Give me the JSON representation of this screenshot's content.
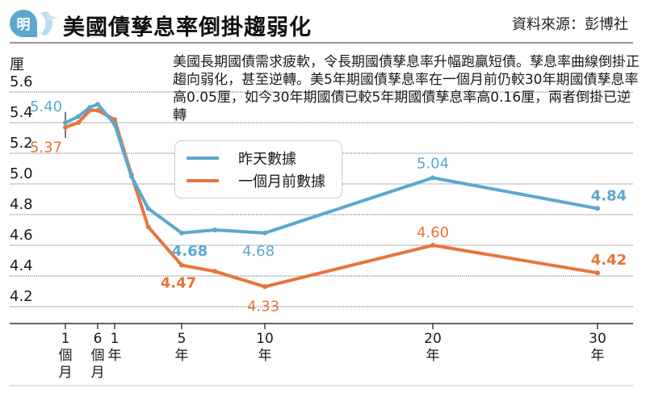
{
  "header": {
    "logo_glyph": "明",
    "logo_icon": "ming-pao-logo-icon",
    "title": "美國債孳息率倒掛趨弱化",
    "source": "資料來源：彭博社"
  },
  "note": "美國長期國債需求疲軟，令長期國債孳息率升幅跑贏短債。孳息率曲線倒掛正趨向弱化，甚至逆轉。美5年期國債孳息率在一個月前仍較30年期國債孳息率高0.05厘，如今30年期國債已較5年期國債孳息率高0.16厘，兩者倒掛已逆轉",
  "colors": {
    "blue": "#5ba8cf",
    "orange": "#e8743b",
    "grid": "#999999",
    "axis": "#333333"
  },
  "chart_data": {
    "type": "line",
    "title": "美國債孳息率倒掛趨弱化",
    "ylabel": "厘",
    "xlabel": "",
    "ylim": [
      4.1,
      5.7
    ],
    "yticks": [
      5.6,
      5.4,
      5.2,
      5.0,
      4.8,
      4.6,
      4.4,
      4.2
    ],
    "ytick_labels": [
      "5.6",
      "5.4",
      "5.2",
      "5.0",
      "4.8",
      "4.6",
      "4.4",
      "4.2"
    ],
    "grid": true,
    "legend_position": "top-center",
    "x_maturities_years": [
      0.083,
      0.25,
      0.5,
      1,
      2,
      3,
      5,
      7,
      10,
      20,
      30
    ],
    "xticks": [
      {
        "value": 0.083,
        "label_lines": [
          "1",
          "個",
          "月"
        ]
      },
      {
        "value": 0.5,
        "label_lines": [
          "6",
          "個",
          "月"
        ]
      },
      {
        "value": 1,
        "label_lines": [
          "1",
          "年"
        ]
      },
      {
        "value": 5,
        "label_lines": [
          "5",
          "年"
        ]
      },
      {
        "value": 10,
        "label_lines": [
          "10",
          "年"
        ]
      },
      {
        "value": 20,
        "label_lines": [
          "20",
          "年"
        ]
      },
      {
        "value": 30,
        "label_lines": [
          "30",
          "年"
        ]
      }
    ],
    "series": [
      {
        "name": "昨天數據",
        "color": "#5ba8cf",
        "values": [
          5.4,
          5.44,
          5.5,
          5.52,
          5.39,
          5.05,
          4.84,
          4.68,
          4.7,
          4.68,
          5.04,
          4.84
        ]
      },
      {
        "name": "一個月前數據",
        "color": "#e8743b",
        "values": [
          5.37,
          5.4,
          5.48,
          5.48,
          5.42,
          5.06,
          4.72,
          4.47,
          4.43,
          4.33,
          4.6,
          4.42
        ]
      }
    ],
    "x_points_years": [
      0.083,
      0.25,
      0.4,
      0.5,
      1,
      2,
      3,
      5,
      7,
      10,
      20,
      30
    ],
    "annotations": [
      {
        "series": 0,
        "x": 0.083,
        "text": "5.40",
        "bold": false
      },
      {
        "series": 1,
        "x": 0.083,
        "text": "5.37",
        "bold": false
      },
      {
        "series": 0,
        "x": 5,
        "text": "4.68",
        "bold": true
      },
      {
        "series": 0,
        "x": 10,
        "text": "4.68",
        "bold": false
      },
      {
        "series": 0,
        "x": 20,
        "text": "5.04",
        "bold": false
      },
      {
        "series": 0,
        "x": 30,
        "text": "4.84",
        "bold": true
      },
      {
        "series": 1,
        "x": 5,
        "text": "4.47",
        "bold": true
      },
      {
        "series": 1,
        "x": 10,
        "text": "4.33",
        "bold": false
      },
      {
        "series": 1,
        "x": 20,
        "text": "4.60",
        "bold": false
      },
      {
        "series": 1,
        "x": 30,
        "text": "4.42",
        "bold": true
      }
    ]
  }
}
